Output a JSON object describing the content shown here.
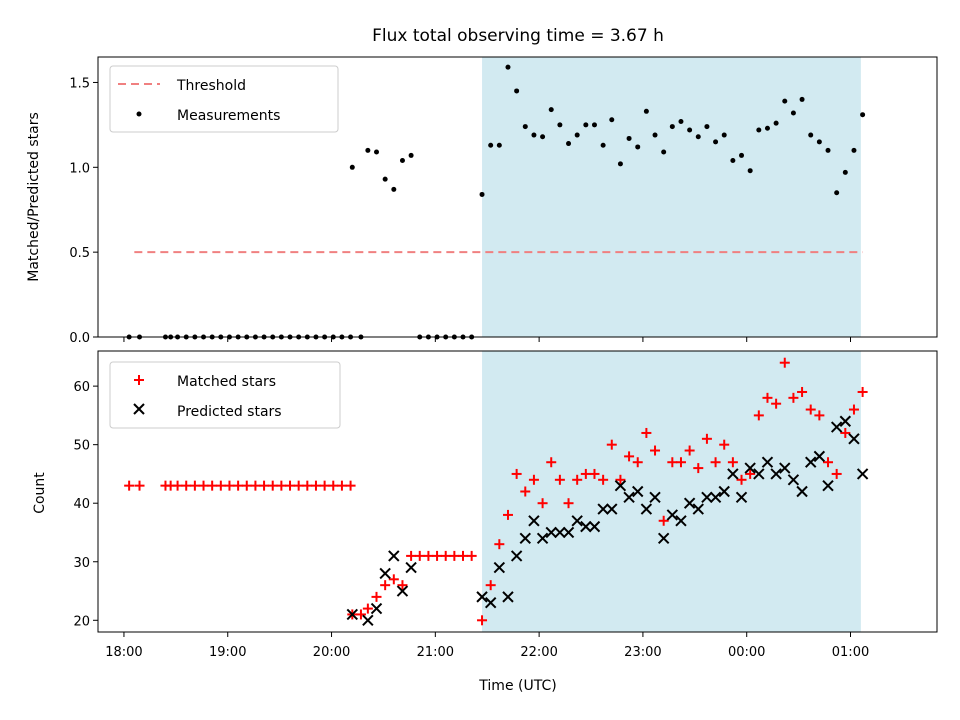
{
  "chart_data": [
    {
      "type": "scatter",
      "title": "Flux total observing time = 3.67 h",
      "xlabel": "",
      "ylabel": "Matched/Predicted stars",
      "ylim": [
        0,
        1.65
      ],
      "yticks": [
        "0.0",
        "0.5",
        "1.0",
        "1.5"
      ],
      "grid": false,
      "legend": "top-left",
      "shaded_interval": {
        "start": "21:27",
        "end": "01:06",
        "color": "#add8e6"
      },
      "threshold": {
        "name": "Threshold",
        "value": 0.5,
        "color": "#f08080"
      },
      "series": [
        {
          "name": "Measurements",
          "color": "#000000",
          "points": [
            [
              "18:03",
              0
            ],
            [
              "18:09",
              0
            ],
            [
              "18:24",
              0
            ],
            [
              "18:27",
              0
            ],
            [
              "18:31",
              0
            ],
            [
              "18:36",
              0
            ],
            [
              "18:41",
              0
            ],
            [
              "18:46",
              0
            ],
            [
              "18:51",
              0
            ],
            [
              "18:56",
              0
            ],
            [
              "19:01",
              0
            ],
            [
              "19:06",
              0
            ],
            [
              "19:11",
              0
            ],
            [
              "19:16",
              0
            ],
            [
              "19:21",
              0
            ],
            [
              "19:26",
              0
            ],
            [
              "19:31",
              0
            ],
            [
              "19:36",
              0
            ],
            [
              "19:41",
              0
            ],
            [
              "19:46",
              0
            ],
            [
              "19:51",
              0
            ],
            [
              "19:56",
              0
            ],
            [
              "20:01",
              0
            ],
            [
              "20:06",
              0
            ],
            [
              "20:11",
              0
            ],
            [
              "20:12",
              1.0
            ],
            [
              "20:17",
              0
            ],
            [
              "20:21",
              1.1
            ],
            [
              "20:26",
              1.09
            ],
            [
              "20:31",
              0.93
            ],
            [
              "20:36",
              0.87
            ],
            [
              "20:41",
              1.04
            ],
            [
              "20:46",
              1.07
            ],
            [
              "20:51",
              0
            ],
            [
              "20:56",
              0
            ],
            [
              "21:01",
              0
            ],
            [
              "21:06",
              0
            ],
            [
              "21:11",
              0
            ],
            [
              "21:16",
              0
            ],
            [
              "21:21",
              0
            ],
            [
              "21:27",
              0.84
            ],
            [
              "21:32",
              1.13
            ],
            [
              "21:37",
              1.13
            ],
            [
              "21:42",
              1.59
            ],
            [
              "21:47",
              1.45
            ],
            [
              "21:52",
              1.24
            ],
            [
              "21:57",
              1.19
            ],
            [
              "22:02",
              1.18
            ],
            [
              "22:07",
              1.34
            ],
            [
              "22:12",
              1.25
            ],
            [
              "22:17",
              1.14
            ],
            [
              "22:22",
              1.19
            ],
            [
              "22:27",
              1.25
            ],
            [
              "22:32",
              1.25
            ],
            [
              "22:37",
              1.13
            ],
            [
              "22:42",
              1.28
            ],
            [
              "22:47",
              1.02
            ],
            [
              "22:52",
              1.17
            ],
            [
              "22:57",
              1.12
            ],
            [
              "23:02",
              1.33
            ],
            [
              "23:07",
              1.19
            ],
            [
              "23:12",
              1.09
            ],
            [
              "23:17",
              1.24
            ],
            [
              "23:22",
              1.27
            ],
            [
              "23:27",
              1.22
            ],
            [
              "23:32",
              1.18
            ],
            [
              "23:37",
              1.24
            ],
            [
              "23:42",
              1.15
            ],
            [
              "23:47",
              1.19
            ],
            [
              "23:52",
              1.04
            ],
            [
              "23:57",
              1.07
            ],
            [
              "00:02",
              0.98
            ],
            [
              "00:07",
              1.22
            ],
            [
              "00:12",
              1.23
            ],
            [
              "00:17",
              1.26
            ],
            [
              "00:22",
              1.39
            ],
            [
              "00:27",
              1.32
            ],
            [
              "00:32",
              1.4
            ],
            [
              "00:37",
              1.19
            ],
            [
              "00:42",
              1.15
            ],
            [
              "00:47",
              1.1
            ],
            [
              "00:52",
              0.85
            ],
            [
              "00:57",
              0.97
            ],
            [
              "01:02",
              1.1
            ],
            [
              "01:07",
              1.31
            ]
          ]
        }
      ]
    },
    {
      "type": "scatter",
      "title": "",
      "xlabel": "Time (UTC)",
      "ylabel": "Count",
      "ylim": [
        18,
        66
      ],
      "yticks": [
        "20",
        "30",
        "40",
        "50",
        "60"
      ],
      "xticks": [
        "18:00",
        "19:00",
        "20:00",
        "21:00",
        "22:00",
        "23:00",
        "00:00",
        "01:00"
      ],
      "grid": false,
      "legend": "top-left",
      "shaded_interval": {
        "start": "21:27",
        "end": "01:06",
        "color": "#add8e6"
      },
      "series": [
        {
          "name": "Matched stars",
          "color": "#ff0000",
          "marker": "plus",
          "points": [
            [
              "18:03",
              43
            ],
            [
              "18:09",
              43
            ],
            [
              "18:24",
              43
            ],
            [
              "18:27",
              43
            ],
            [
              "18:31",
              43
            ],
            [
              "18:36",
              43
            ],
            [
              "18:41",
              43
            ],
            [
              "18:46",
              43
            ],
            [
              "18:51",
              43
            ],
            [
              "18:56",
              43
            ],
            [
              "19:01",
              43
            ],
            [
              "19:06",
              43
            ],
            [
              "19:11",
              43
            ],
            [
              "19:16",
              43
            ],
            [
              "19:21",
              43
            ],
            [
              "19:26",
              43
            ],
            [
              "19:31",
              43
            ],
            [
              "19:36",
              43
            ],
            [
              "19:41",
              43
            ],
            [
              "19:46",
              43
            ],
            [
              "19:51",
              43
            ],
            [
              "19:56",
              43
            ],
            [
              "20:01",
              43
            ],
            [
              "20:06",
              43
            ],
            [
              "20:11",
              43
            ],
            [
              "20:12",
              21
            ],
            [
              "20:17",
              21
            ],
            [
              "20:21",
              22
            ],
            [
              "20:26",
              24
            ],
            [
              "20:31",
              26
            ],
            [
              "20:36",
              27
            ],
            [
              "20:41",
              26
            ],
            [
              "20:46",
              31
            ],
            [
              "20:51",
              31
            ],
            [
              "20:56",
              31
            ],
            [
              "21:01",
              31
            ],
            [
              "21:06",
              31
            ],
            [
              "21:11",
              31
            ],
            [
              "21:16",
              31
            ],
            [
              "21:21",
              31
            ],
            [
              "21:27",
              20
            ],
            [
              "21:32",
              26
            ],
            [
              "21:37",
              33
            ],
            [
              "21:42",
              38
            ],
            [
              "21:47",
              45
            ],
            [
              "21:52",
              42
            ],
            [
              "21:57",
              44
            ],
            [
              "22:02",
              40
            ],
            [
              "22:07",
              47
            ],
            [
              "22:12",
              44
            ],
            [
              "22:17",
              40
            ],
            [
              "22:22",
              44
            ],
            [
              "22:27",
              45
            ],
            [
              "22:32",
              45
            ],
            [
              "22:37",
              44
            ],
            [
              "22:42",
              50
            ],
            [
              "22:47",
              44
            ],
            [
              "22:52",
              48
            ],
            [
              "22:57",
              47
            ],
            [
              "23:02",
              52
            ],
            [
              "23:07",
              49
            ],
            [
              "23:12",
              37
            ],
            [
              "23:17",
              47
            ],
            [
              "23:22",
              47
            ],
            [
              "23:27",
              49
            ],
            [
              "23:32",
              46
            ],
            [
              "23:37",
              51
            ],
            [
              "23:42",
              47
            ],
            [
              "23:47",
              50
            ],
            [
              "23:52",
              47
            ],
            [
              "23:57",
              44
            ],
            [
              "00:02",
              45
            ],
            [
              "00:07",
              55
            ],
            [
              "00:12",
              58
            ],
            [
              "00:17",
              57
            ],
            [
              "00:22",
              64
            ],
            [
              "00:27",
              58
            ],
            [
              "00:32",
              59
            ],
            [
              "00:37",
              56
            ],
            [
              "00:42",
              55
            ],
            [
              "00:47",
              47
            ],
            [
              "00:52",
              45
            ],
            [
              "00:57",
              52
            ],
            [
              "01:02",
              56
            ],
            [
              "01:07",
              59
            ]
          ]
        },
        {
          "name": "Predicted stars",
          "color": "#000000",
          "marker": "x",
          "points": [
            [
              "20:12",
              21
            ],
            [
              "20:21",
              20
            ],
            [
              "20:26",
              22
            ],
            [
              "20:31",
              28
            ],
            [
              "20:36",
              31
            ],
            [
              "20:41",
              25
            ],
            [
              "20:46",
              29
            ],
            [
              "21:27",
              24
            ],
            [
              "21:32",
              23
            ],
            [
              "21:37",
              29
            ],
            [
              "21:42",
              24
            ],
            [
              "21:47",
              31
            ],
            [
              "21:52",
              34
            ],
            [
              "21:57",
              37
            ],
            [
              "22:02",
              34
            ],
            [
              "22:07",
              35
            ],
            [
              "22:12",
              35
            ],
            [
              "22:17",
              35
            ],
            [
              "22:22",
              37
            ],
            [
              "22:27",
              36
            ],
            [
              "22:32",
              36
            ],
            [
              "22:37",
              39
            ],
            [
              "22:42",
              39
            ],
            [
              "22:47",
              43
            ],
            [
              "22:52",
              41
            ],
            [
              "22:57",
              42
            ],
            [
              "23:02",
              39
            ],
            [
              "23:07",
              41
            ],
            [
              "23:12",
              34
            ],
            [
              "23:17",
              38
            ],
            [
              "23:22",
              37
            ],
            [
              "23:27",
              40
            ],
            [
              "23:32",
              39
            ],
            [
              "23:37",
              41
            ],
            [
              "23:42",
              41
            ],
            [
              "23:47",
              42
            ],
            [
              "23:52",
              45
            ],
            [
              "23:57",
              41
            ],
            [
              "00:02",
              46
            ],
            [
              "00:07",
              45
            ],
            [
              "00:12",
              47
            ],
            [
              "00:17",
              45
            ],
            [
              "00:22",
              46
            ],
            [
              "00:27",
              44
            ],
            [
              "00:32",
              42
            ],
            [
              "00:37",
              47
            ],
            [
              "00:42",
              48
            ],
            [
              "00:47",
              43
            ],
            [
              "00:52",
              53
            ],
            [
              "00:57",
              54
            ],
            [
              "01:02",
              51
            ],
            [
              "01:07",
              45
            ]
          ]
        }
      ]
    }
  ]
}
